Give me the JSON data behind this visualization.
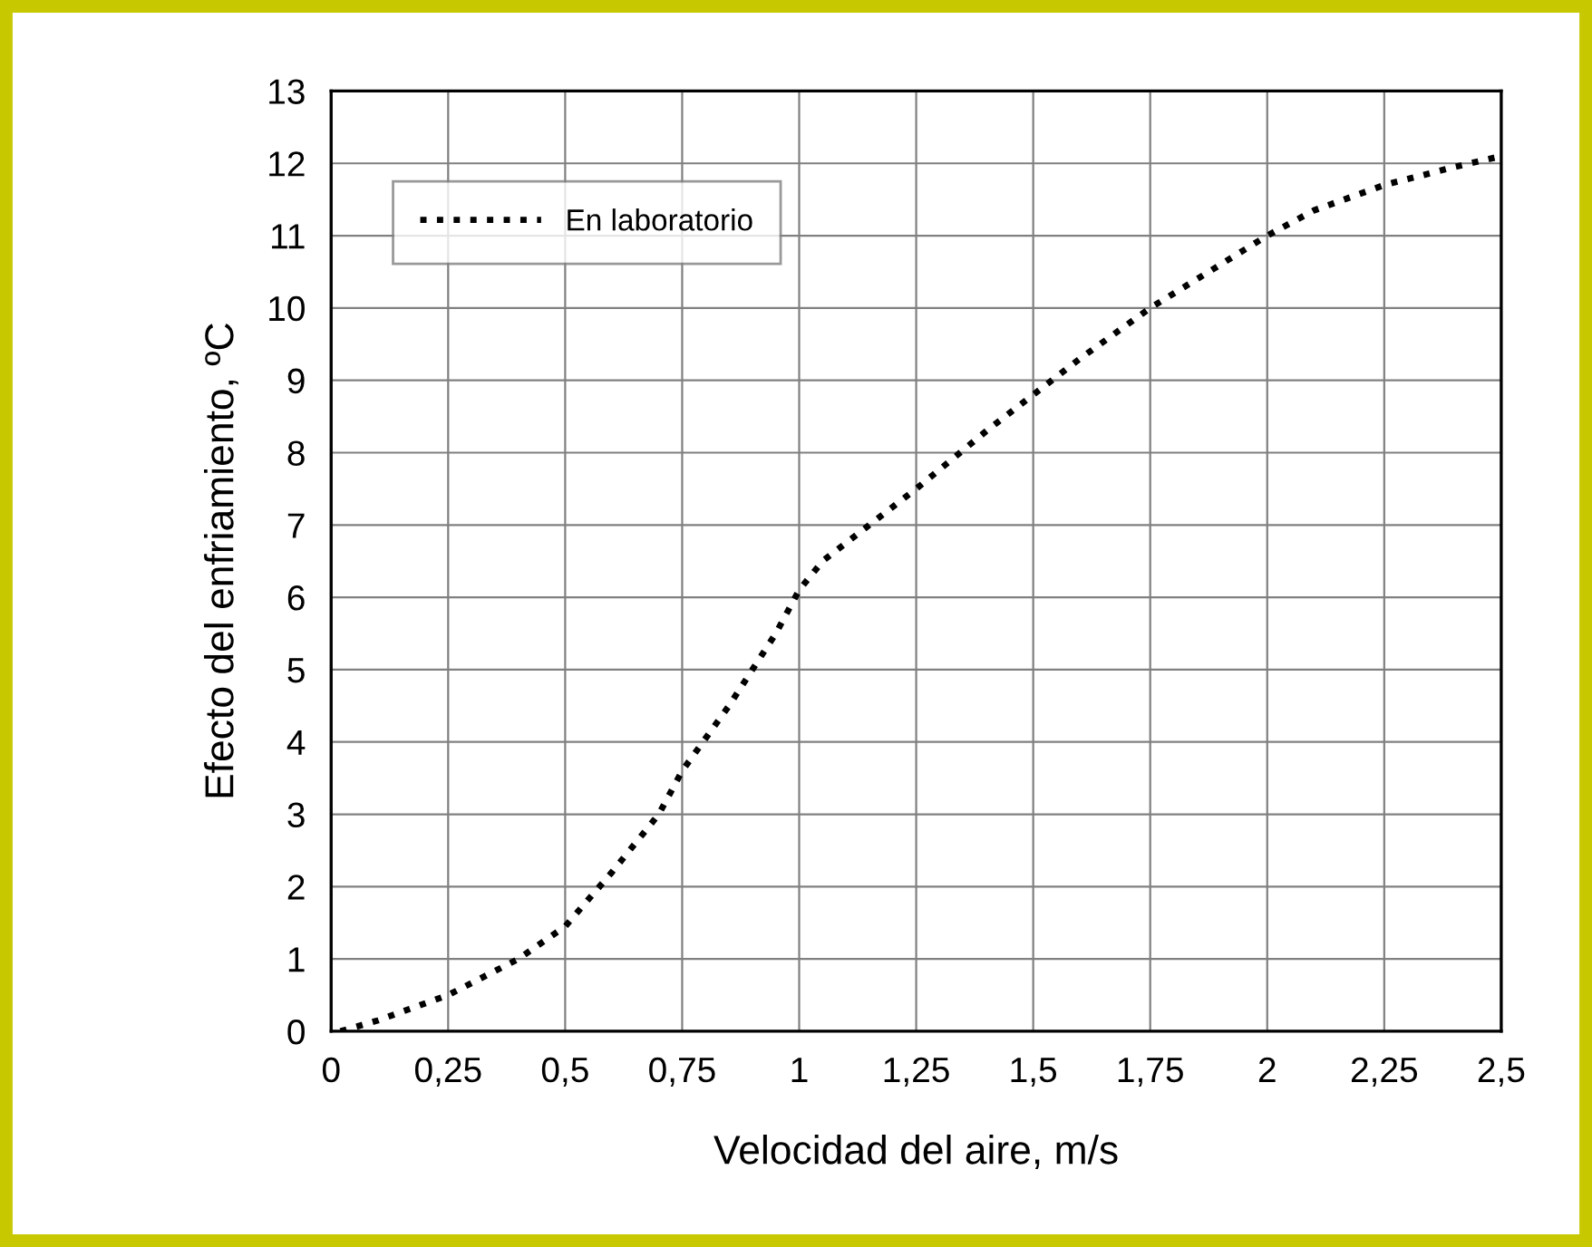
{
  "chart_data": {
    "type": "line",
    "xlabel": "Velocidad del aire, m/s",
    "ylabel": "Efecto del enfriamiento, ºC",
    "series": [
      {
        "name": "En laboratorio",
        "color": "#000000",
        "x": [
          0.02,
          0.1,
          0.25,
          0.4,
          0.5,
          0.6,
          0.7,
          0.75,
          0.85,
          0.95,
          1.0,
          1.05,
          1.15,
          1.25,
          1.4,
          1.5,
          1.6,
          1.75,
          1.9,
          2.0,
          2.1,
          2.25,
          2.4,
          2.5
        ],
        "values": [
          0,
          0.15,
          0.5,
          1.0,
          1.45,
          2.2,
          3.0,
          3.6,
          4.5,
          5.5,
          6.1,
          6.5,
          7.0,
          7.5,
          8.3,
          8.8,
          9.3,
          10.0,
          10.6,
          11.0,
          11.35,
          11.7,
          11.95,
          12.1
        ]
      }
    ],
    "xlim": [
      0,
      2.5
    ],
    "ylim": [
      0,
      13
    ],
    "xticks": [
      0,
      {
        "value": 0.25,
        "label": "0,25"
      },
      {
        "value": 0.5,
        "label": "0,5"
      },
      {
        "value": 0.75,
        "label": "0,75"
      },
      1,
      {
        "value": 1.25,
        "label": "1,25"
      },
      {
        "value": 1.5,
        "label": "1,5"
      },
      {
        "value": 1.75,
        "label": "1,75"
      },
      2,
      {
        "value": 2.25,
        "label": "2,25"
      },
      {
        "value": 2.5,
        "label": "2,5"
      }
    ],
    "yticks": [
      0,
      1,
      2,
      3,
      4,
      5,
      6,
      7,
      8,
      9,
      10,
      11,
      12,
      13
    ],
    "grid": true,
    "legend": "top left",
    "line_style": "dotted",
    "marker": "none"
  }
}
